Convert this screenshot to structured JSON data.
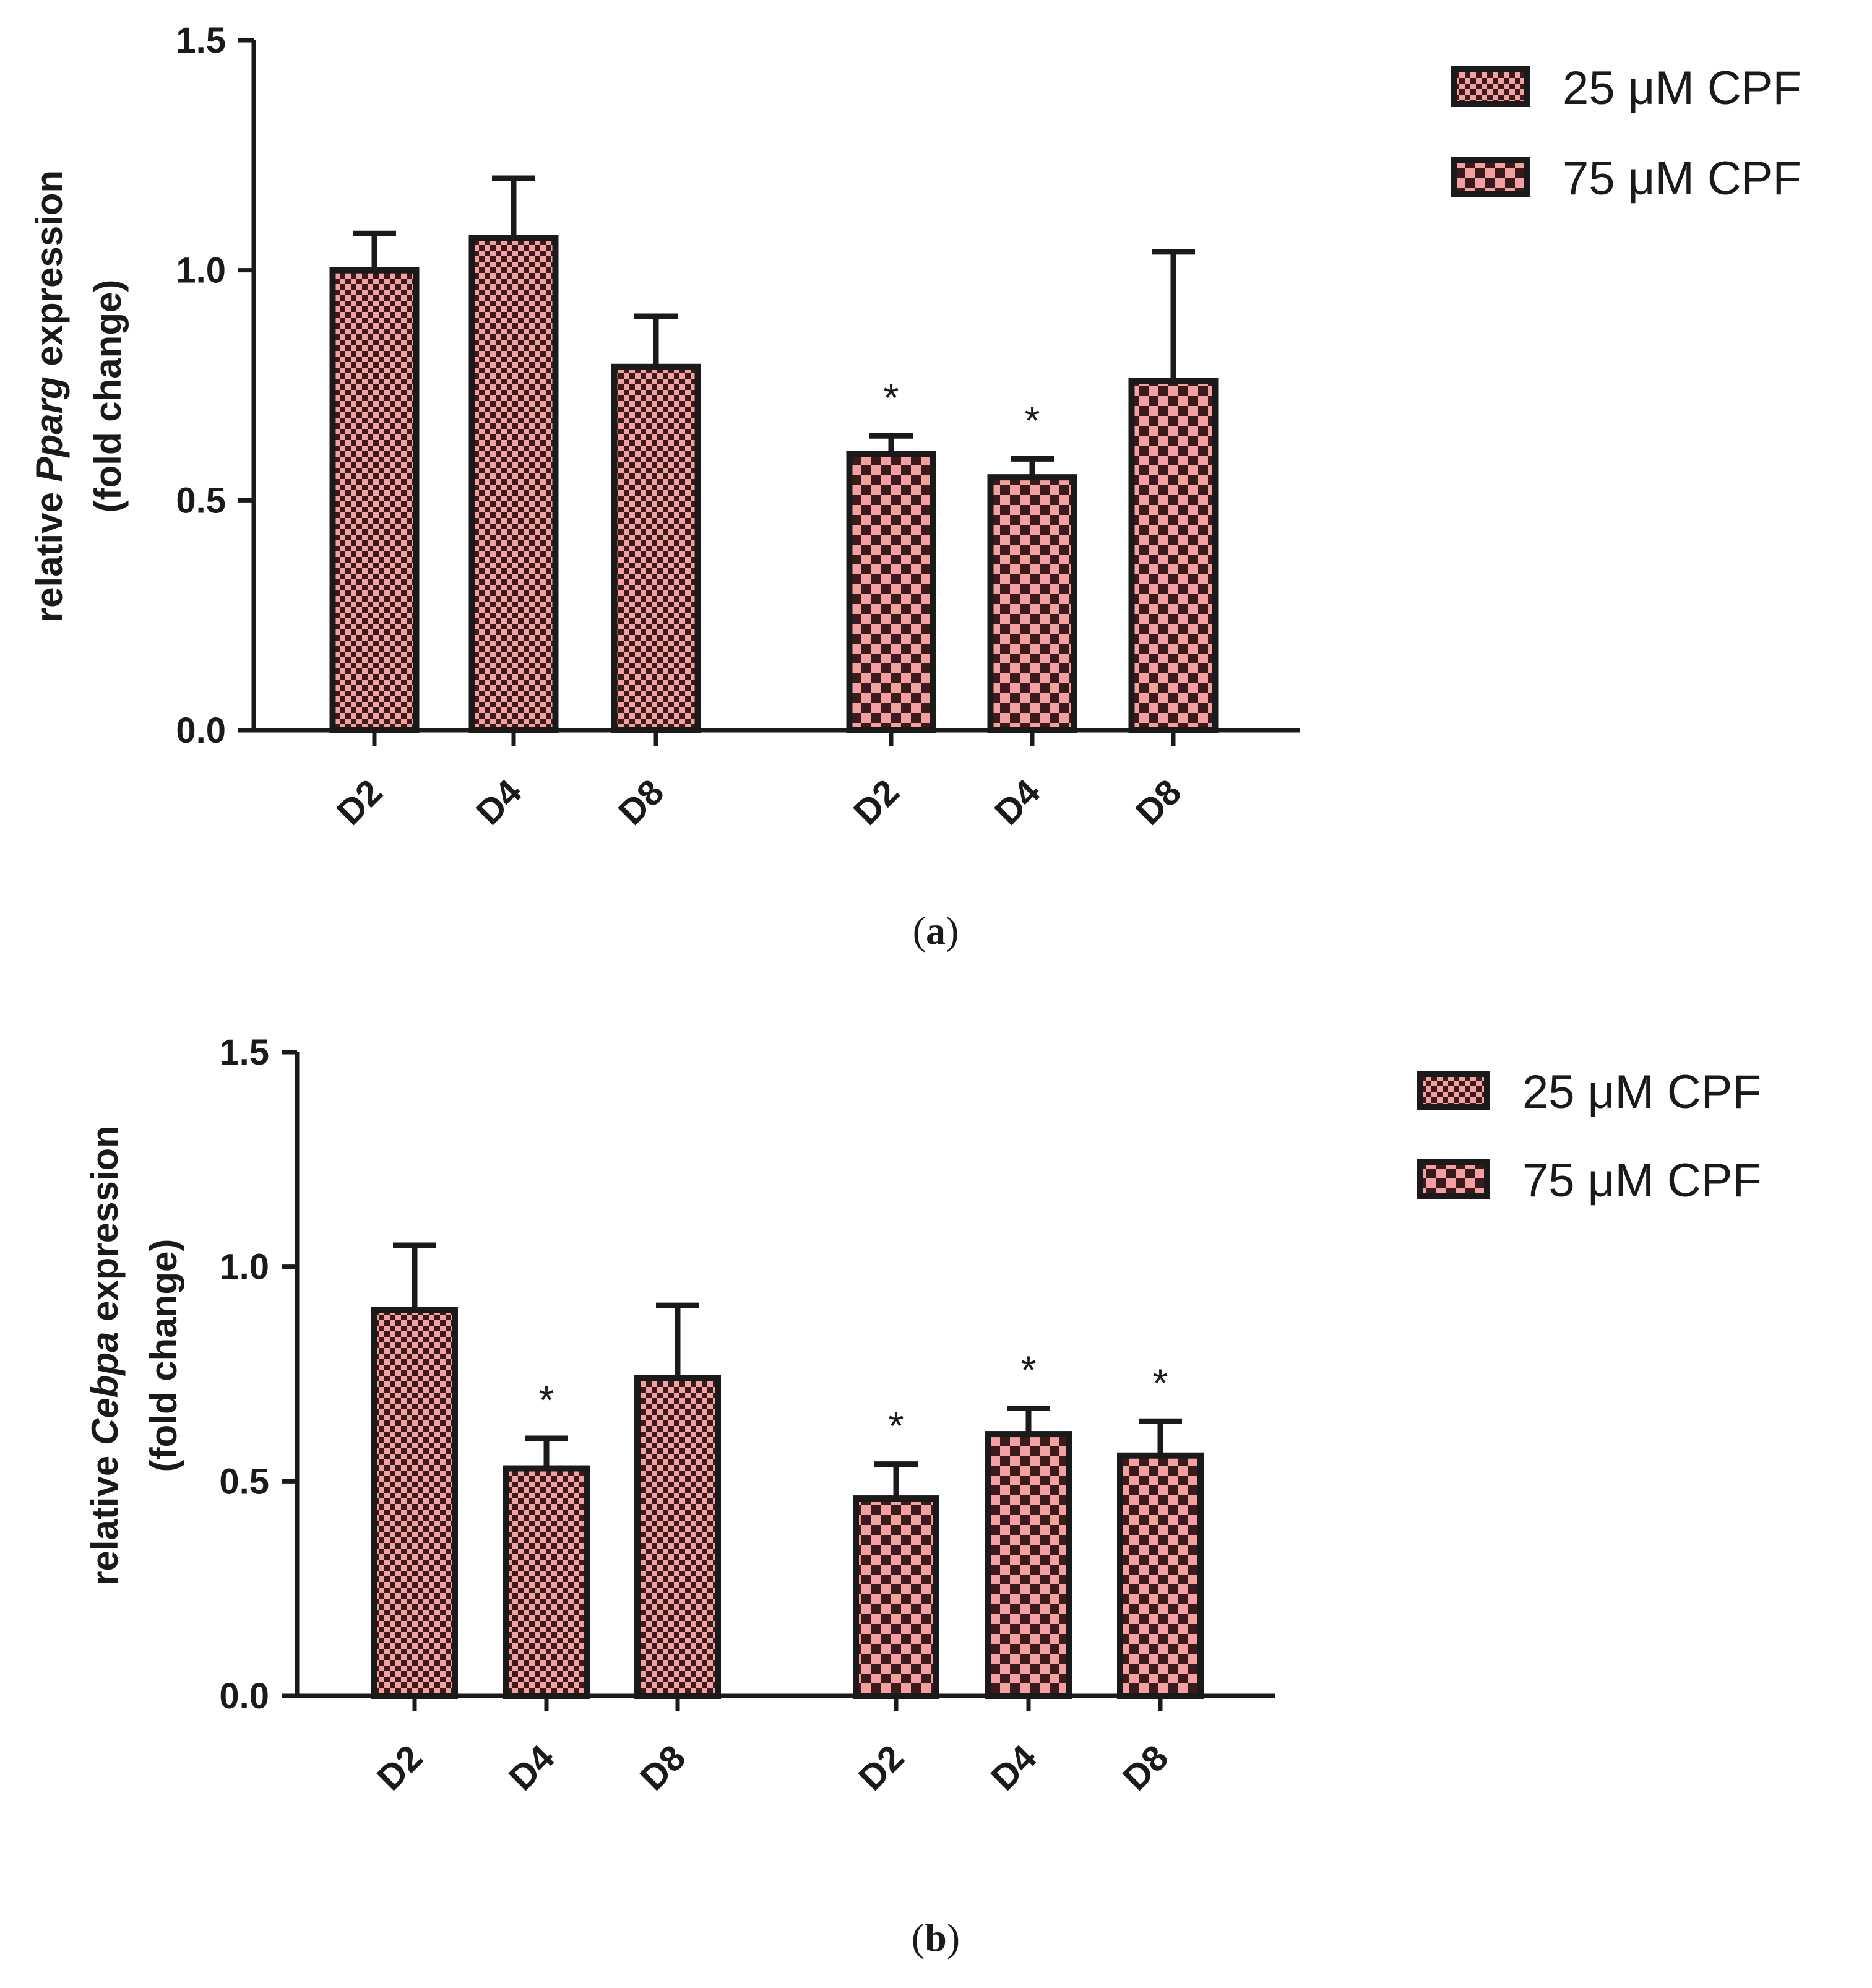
{
  "colors": {
    "bar_fill": "#f4a0a0",
    "bar_check": "#3a1a1a",
    "axis": "#1a1a1a"
  },
  "chart_data": [
    {
      "type": "bar",
      "panel_label_prefix": "(",
      "panel_letter": "a",
      "panel_label_suffix": ")",
      "ylabel_pre": "relative ",
      "ylabel_gene": "Pparg",
      "ylabel_post": " expression",
      "ylabel_line2": "(fold change)",
      "ylim": [
        0,
        1.5
      ],
      "yticks": [
        "0.0",
        "0.5",
        "1.0",
        "1.5"
      ],
      "ytick_values": [
        0,
        0.5,
        1.0,
        1.5
      ],
      "series": [
        {
          "name": "25 μM CPF",
          "categories": [
            "D2",
            "D4",
            "D8"
          ],
          "values": [
            1.0,
            1.07,
            0.79
          ],
          "errors": [
            0.08,
            0.13,
            0.11
          ],
          "significant": [
            false,
            false,
            false
          ]
        },
        {
          "name": "75 μM CPF",
          "categories": [
            "D2",
            "D4",
            "D8"
          ],
          "values": [
            0.6,
            0.55,
            0.76
          ],
          "errors": [
            0.04,
            0.04,
            0.28
          ],
          "significant": [
            true,
            true,
            false
          ]
        }
      ],
      "significance_mark": "*"
    },
    {
      "type": "bar",
      "panel_label_prefix": "(",
      "panel_letter": "b",
      "panel_label_suffix": ")",
      "ylabel_pre": "relative ",
      "ylabel_gene": "Cebpa",
      "ylabel_post": " expression",
      "ylabel_line2": "(fold change)",
      "ylim": [
        0,
        1.5
      ],
      "yticks": [
        "0.0",
        "0.5",
        "1.0",
        "1.5"
      ],
      "ytick_values": [
        0,
        0.5,
        1.0,
        1.5
      ],
      "series": [
        {
          "name": "25 μM CPF",
          "categories": [
            "D2",
            "D4",
            "D8"
          ],
          "values": [
            0.9,
            0.53,
            0.74
          ],
          "errors": [
            0.15,
            0.07,
            0.17
          ],
          "significant": [
            false,
            true,
            false
          ]
        },
        {
          "name": "75 μM CPF",
          "categories": [
            "D2",
            "D4",
            "D8"
          ],
          "values": [
            0.46,
            0.61,
            0.56
          ],
          "errors": [
            0.08,
            0.06,
            0.08
          ],
          "significant": [
            true,
            true,
            true
          ]
        }
      ],
      "significance_mark": "*"
    }
  ]
}
